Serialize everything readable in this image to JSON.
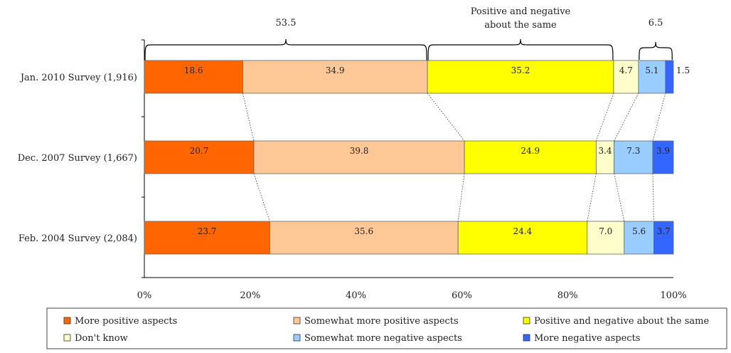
{
  "chart_data": {
    "type": "bar",
    "orientation": "horizontal",
    "stacked": true,
    "categories": [
      "Jan. 2010 Survey (1,916)",
      "Dec. 2007 Survey (1,667)",
      "Feb. 2004 Survey (2,084)"
    ],
    "series": [
      {
        "name": "More positive aspects",
        "color": "#ff6600",
        "values": [
          18.6,
          20.7,
          23.7
        ]
      },
      {
        "name": "Somewhat more positive aspects",
        "color": "#ffc896",
        "values": [
          34.9,
          39.8,
          35.6
        ]
      },
      {
        "name": "Positive and negative about the same",
        "color": "#ffff00",
        "values": [
          35.2,
          24.9,
          24.4
        ]
      },
      {
        "name": "Don't know",
        "color": "#ffffcc",
        "values": [
          4.7,
          3.4,
          7.0
        ]
      },
      {
        "name": "Somewhat more negative aspects",
        "color": "#99ccff",
        "values": [
          5.1,
          7.3,
          5.6
        ]
      },
      {
        "name": "More negative aspects",
        "color": "#3366ff",
        "values": [
          1.5,
          3.9,
          3.7
        ]
      }
    ],
    "xlim": [
      0,
      100
    ],
    "xticks": [
      "0%",
      "20%",
      "40%",
      "60%",
      "80%",
      "100%"
    ],
    "legend_position": "bottom",
    "annotations": [
      {
        "text": "53.5",
        "from": 0,
        "to": 53.5
      },
      {
        "text": "Positive and negative about the same",
        "lines": [
          "Positive and negative",
          "about the same"
        ],
        "from": 53.5,
        "to": 88.7
      },
      {
        "text": "6.5",
        "from": 93.4,
        "to": 99.9
      }
    ]
  }
}
